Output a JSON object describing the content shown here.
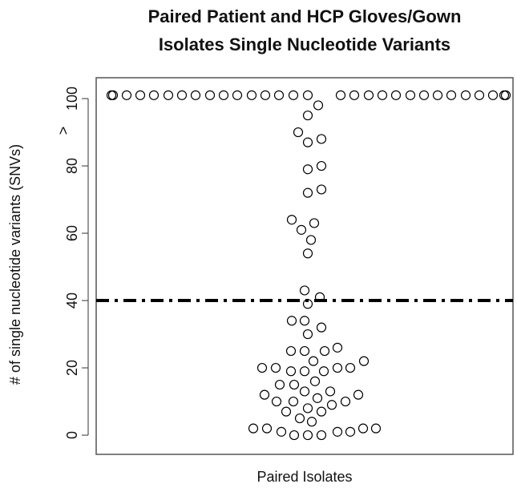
{
  "chart_data": {
    "type": "scatter",
    "title": [
      "Paired Patient and HCP Gloves/Gown",
      "Isolates Single Nucleotide Variants"
    ],
    "x_label": "Paired Isolates",
    "y_label": "# of single nucleotide variants (SNVs)",
    "annotation": ">",
    "hline": 40,
    "xlim": [
      0,
      520
    ],
    "ylim": [
      -5.7,
      106.2
    ],
    "yticks": [
      0,
      20,
      40,
      60,
      80,
      100
    ],
    "series": [
      {
        "color": "#000000",
        "x": [
          19,
          21,
          38,
          55,
          72,
          90,
          107,
          124,
          142,
          159,
          176,
          194,
          211,
          228,
          246,
          264,
          305,
          322,
          340,
          357,
          374,
          392,
          409,
          426,
          443,
          461,
          478,
          495,
          509,
          511,
          277,
          264,
          252,
          281,
          264,
          281,
          264,
          281,
          264,
          244,
          272,
          256,
          268,
          264,
          260,
          279,
          264,
          244,
          260,
          281,
          264,
          243,
          260,
          285,
          301,
          271,
          334,
          207,
          224,
          317,
          301,
          243,
          260,
          284,
          273,
          229,
          247,
          260,
          292,
          210,
          327,
          225,
          246,
          276,
          311,
          294,
          264,
          237,
          281,
          254,
          269,
          196,
          213,
          231,
          301,
          317,
          333,
          349,
          247,
          264,
          281
        ],
        "values": [
          101,
          101,
          101,
          101,
          101,
          101,
          101,
          101,
          101,
          101,
          101,
          101,
          101,
          101,
          101,
          101,
          101,
          101,
          101,
          101,
          101,
          101,
          101,
          101,
          101,
          101,
          101,
          101,
          101,
          101,
          98,
          95,
          90,
          88,
          87,
          80,
          79,
          73,
          72,
          64,
          63,
          61,
          58,
          54,
          43,
          41,
          39,
          34,
          34,
          32,
          30,
          25,
          25,
          25,
          26,
          22,
          22,
          20,
          20,
          20,
          20,
          19,
          19,
          19,
          16,
          15,
          15,
          13,
          13,
          12,
          12,
          10,
          10,
          11,
          10,
          9,
          8,
          7,
          7,
          5,
          4,
          2,
          2,
          1,
          1,
          1,
          2,
          2,
          0,
          0,
          0
        ]
      }
    ]
  }
}
